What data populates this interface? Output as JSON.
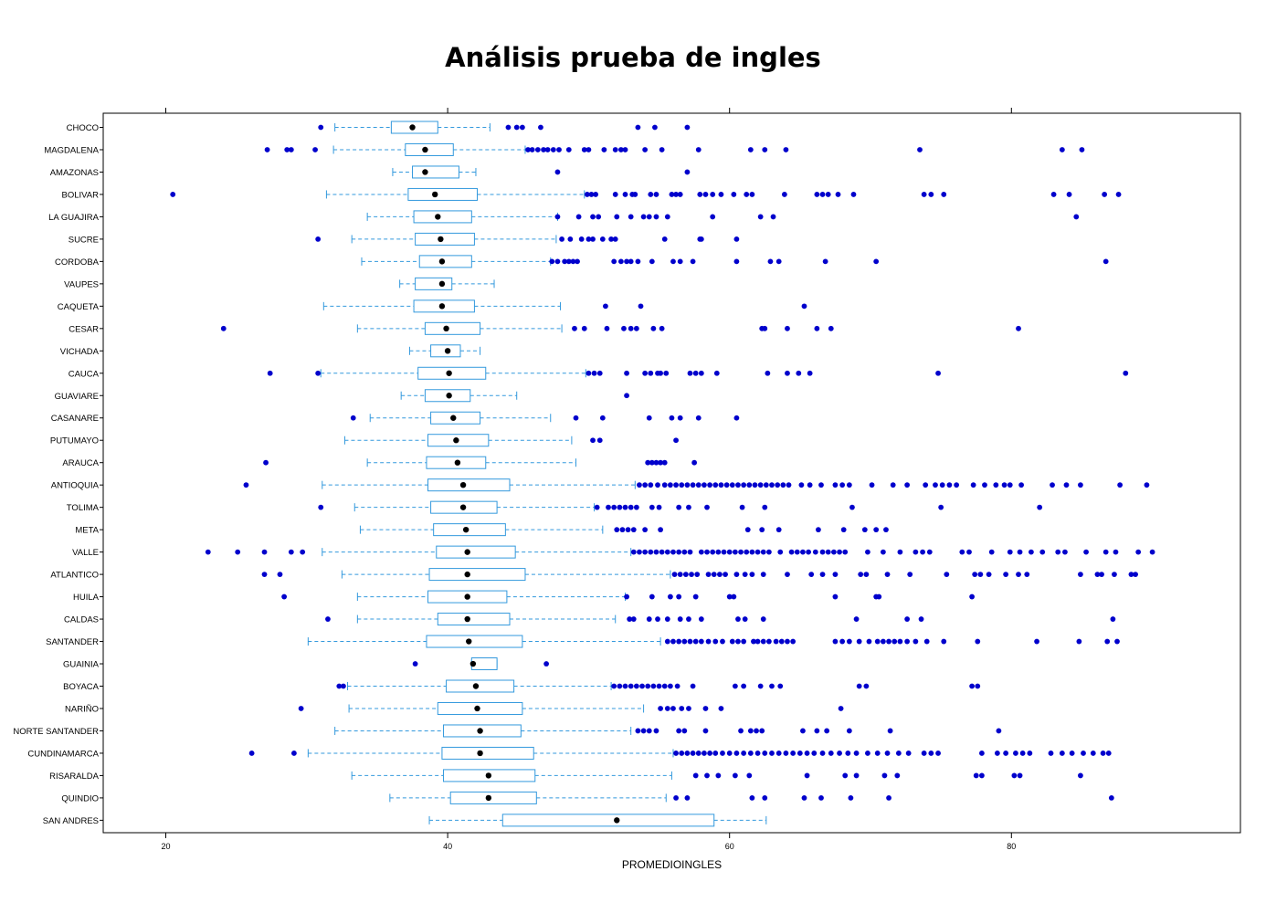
{
  "chart_data": {
    "type": "boxplot",
    "title": "Análisis prueba de ingles",
    "xlabel": "PROMEDIOINGLES",
    "xlim": [
      15.0,
      95.9
    ],
    "xticks": [
      20,
      40,
      60,
      80
    ],
    "colors": {
      "box": "#3399dd",
      "median": "#000000",
      "outlier": "#0000cc",
      "frame": "#000000"
    },
    "categories": [
      "CHOCO",
      "MAGDALENA",
      "AMAZONAS",
      "BOLIVAR",
      "LA GUAJIRA",
      "SUCRE",
      "CORDOBA",
      "VAUPES",
      "CAQUETA",
      "CESAR",
      "VICHADA",
      "CAUCA",
      "GUAVIARE",
      "CASANARE",
      "PUTUMAYO",
      "ARAUCA",
      "ANTIOQUIA",
      "TOLIMA",
      "META",
      "VALLE",
      "ATLANTICO",
      "HUILA",
      "CALDAS",
      "SANTANDER",
      "GUAINIA",
      "BOYACA",
      "NARIÑO",
      "NORTE SANTANDER",
      "CUNDINAMARCA",
      "RISARALDA",
      "QUINDIO",
      "SAN ANDRES"
    ],
    "series": [
      {
        "whisker_low": 32.0,
        "q1": 36.0,
        "median": 37.5,
        "q3": 39.3,
        "whisker_high": 43.0,
        "outliers": [
          31.0,
          44.3,
          44.9,
          45.3,
          46.6,
          53.5,
          54.7,
          57.0
        ]
      },
      {
        "whisker_low": 31.9,
        "q1": 37.0,
        "median": 38.4,
        "q3": 40.4,
        "whisker_high": 45.5,
        "outliers": [
          27.2,
          28.6,
          28.9,
          30.6,
          45.7,
          46.0,
          46.4,
          46.8,
          47.1,
          47.5,
          47.9,
          48.6,
          49.7,
          50.0,
          51.1,
          51.9,
          52.3,
          52.6,
          54.0,
          55.2,
          57.8,
          61.5,
          62.5,
          64.0,
          73.5,
          83.6,
          85.0
        ]
      },
      {
        "whisker_low": 36.1,
        "q1": 37.5,
        "median": 38.4,
        "q3": 40.8,
        "whisker_high": 42.0,
        "outliers": [
          47.8,
          57.0
        ]
      },
      {
        "whisker_low": 31.4,
        "q1": 37.2,
        "median": 39.1,
        "q3": 42.1,
        "whisker_high": 49.7,
        "outliers": [
          20.5,
          49.9,
          50.2,
          50.5,
          51.9,
          52.6,
          53.1,
          53.3,
          54.4,
          54.8,
          55.9,
          56.2,
          56.5,
          57.9,
          58.3,
          58.8,
          59.4,
          60.3,
          61.2,
          61.6,
          63.9,
          66.2,
          66.6,
          67.0,
          67.7,
          68.8,
          73.8,
          74.3,
          75.2,
          83.0,
          84.1,
          86.6,
          87.6
        ]
      },
      {
        "whisker_low": 34.3,
        "q1": 37.6,
        "median": 39.3,
        "q3": 41.7,
        "whisker_high": 47.8,
        "outliers": [
          47.8,
          49.3,
          50.3,
          50.7,
          52.0,
          53.0,
          53.9,
          54.3,
          54.8,
          55.6,
          58.8,
          62.2,
          63.1,
          84.6
        ]
      },
      {
        "whisker_low": 33.2,
        "q1": 37.7,
        "median": 39.5,
        "q3": 41.9,
        "whisker_high": 47.7,
        "outliers": [
          30.8,
          48.1,
          48.7,
          49.5,
          50.0,
          50.3,
          51.0,
          51.6,
          51.9,
          55.4,
          57.9,
          58.0,
          60.5
        ]
      },
      {
        "whisker_low": 33.9,
        "q1": 38.0,
        "median": 39.6,
        "q3": 41.7,
        "whisker_high": 47.3,
        "outliers": [
          47.4,
          47.8,
          48.3,
          48.6,
          48.9,
          49.2,
          51.8,
          52.3,
          52.7,
          53.0,
          53.5,
          54.5,
          56.0,
          56.5,
          57.4,
          60.5,
          62.9,
          63.5,
          66.8,
          70.4,
          86.7
        ]
      },
      {
        "whisker_low": 36.6,
        "q1": 37.7,
        "median": 39.6,
        "q3": 40.3,
        "whisker_high": 43.3,
        "outliers": []
      },
      {
        "whisker_low": 31.2,
        "q1": 37.6,
        "median": 39.6,
        "q3": 41.9,
        "whisker_high": 48.0,
        "outliers": [
          51.2,
          53.7,
          65.3
        ]
      },
      {
        "whisker_low": 33.6,
        "q1": 38.4,
        "median": 39.9,
        "q3": 42.3,
        "whisker_high": 48.1,
        "outliers": [
          24.1,
          49.0,
          49.7,
          51.3,
          52.5,
          53.0,
          53.4,
          54.6,
          55.2,
          62.3,
          62.5,
          64.1,
          66.2,
          67.2,
          80.5
        ]
      },
      {
        "whisker_low": 37.3,
        "q1": 38.8,
        "median": 40.0,
        "q3": 40.9,
        "whisker_high": 42.3,
        "outliers": []
      },
      {
        "whisker_low": 31.0,
        "q1": 37.9,
        "median": 40.1,
        "q3": 42.7,
        "whisker_high": 49.8,
        "outliers": [
          27.4,
          30.8,
          50.0,
          50.4,
          50.8,
          52.7,
          54.0,
          54.4,
          54.9,
          55.1,
          55.5,
          57.2,
          57.6,
          58.0,
          59.1,
          62.7,
          64.1,
          64.9,
          65.7,
          74.8,
          88.1
        ]
      },
      {
        "whisker_low": 36.7,
        "q1": 38.4,
        "median": 40.1,
        "q3": 41.6,
        "whisker_high": 44.9,
        "outliers": [
          52.7
        ]
      },
      {
        "whisker_low": 34.5,
        "q1": 38.8,
        "median": 40.4,
        "q3": 42.3,
        "whisker_high": 47.3,
        "outliers": [
          33.3,
          49.1,
          51.0,
          54.3,
          55.9,
          56.5,
          57.8,
          60.5
        ]
      },
      {
        "whisker_low": 32.7,
        "q1": 38.6,
        "median": 40.6,
        "q3": 42.9,
        "whisker_high": 48.8,
        "outliers": [
          50.3,
          50.8,
          56.2
        ]
      },
      {
        "whisker_low": 34.3,
        "q1": 38.5,
        "median": 40.7,
        "q3": 42.7,
        "whisker_high": 49.1,
        "outliers": [
          27.1,
          54.2,
          54.5,
          54.8,
          55.1,
          55.4,
          57.5
        ]
      },
      {
        "whisker_low": 31.1,
        "q1": 38.6,
        "median": 41.1,
        "q3": 44.4,
        "whisker_high": 53.3,
        "outliers": [
          25.7,
          53.6,
          54.0,
          54.4,
          54.9,
          55.4,
          55.8,
          56.2,
          56.6,
          57.0,
          57.4,
          57.8,
          58.2,
          58.6,
          59.0,
          59.4,
          59.8,
          60.2,
          60.6,
          61.0,
          61.4,
          61.8,
          62.2,
          62.6,
          63.0,
          63.4,
          63.8,
          64.2,
          65.1,
          65.7,
          66.5,
          67.5,
          68.0,
          68.5,
          70.1,
          71.6,
          72.6,
          73.9,
          74.6,
          75.1,
          75.6,
          76.1,
          77.3,
          78.1,
          78.9,
          79.5,
          79.9,
          80.7,
          82.9,
          83.9,
          84.9,
          87.7,
          89.6
        ]
      },
      {
        "whisker_low": 33.4,
        "q1": 38.8,
        "median": 41.1,
        "q3": 43.5,
        "whisker_high": 50.4,
        "outliers": [
          31.0,
          50.6,
          51.4,
          51.8,
          52.2,
          52.6,
          53.0,
          53.4,
          54.5,
          55.0,
          56.4,
          57.1,
          58.4,
          60.9,
          62.5,
          68.7,
          75.0,
          82.0
        ]
      },
      {
        "whisker_low": 33.8,
        "q1": 39.0,
        "median": 41.3,
        "q3": 44.1,
        "whisker_high": 51.0,
        "outliers": [
          52.0,
          52.4,
          52.8,
          53.2,
          54.0,
          55.1,
          61.3,
          62.3,
          63.5,
          66.3,
          68.1,
          69.6,
          70.4,
          71.1
        ]
      },
      {
        "whisker_low": 31.1,
        "q1": 39.2,
        "median": 41.4,
        "q3": 44.8,
        "whisker_high": 53.0,
        "outliers": [
          23.0,
          25.1,
          27.0,
          28.9,
          29.7,
          53.2,
          53.6,
          54.0,
          54.4,
          54.8,
          55.2,
          55.6,
          56.0,
          56.4,
          56.8,
          57.2,
          58.0,
          58.4,
          58.8,
          59.2,
          59.6,
          60.0,
          60.4,
          60.8,
          61.2,
          61.6,
          62.0,
          62.4,
          62.8,
          63.6,
          64.4,
          64.8,
          65.2,
          65.6,
          66.1,
          66.6,
          67.0,
          67.4,
          67.8,
          68.2,
          69.8,
          70.9,
          72.1,
          73.2,
          73.7,
          74.2,
          76.5,
          77.0,
          78.6,
          79.9,
          80.6,
          81.4,
          82.2,
          83.3,
          83.8,
          85.3,
          86.7,
          87.4,
          89.0,
          90.0
        ]
      },
      {
        "whisker_low": 32.5,
        "q1": 38.7,
        "median": 41.4,
        "q3": 45.5,
        "whisker_high": 55.8,
        "outliers": [
          27.0,
          28.1,
          56.1,
          56.5,
          56.9,
          57.3,
          57.7,
          58.5,
          58.9,
          59.3,
          59.7,
          60.5,
          61.1,
          61.6,
          62.4,
          64.1,
          65.8,
          66.6,
          67.5,
          69.3,
          69.7,
          71.2,
          72.8,
          75.4,
          77.4,
          77.8,
          78.4,
          79.6,
          80.5,
          81.1,
          84.9,
          86.1,
          86.4,
          87.3,
          88.5,
          88.8
        ]
      },
      {
        "whisker_low": 33.6,
        "q1": 38.6,
        "median": 41.4,
        "q3": 44.2,
        "whisker_high": 52.6,
        "outliers": [
          28.4,
          52.7,
          54.5,
          55.8,
          56.4,
          57.6,
          60.0,
          60.3,
          67.5,
          70.4,
          70.6,
          77.2
        ]
      },
      {
        "whisker_low": 33.6,
        "q1": 39.3,
        "median": 41.4,
        "q3": 44.4,
        "whisker_high": 51.9,
        "outliers": [
          31.5,
          52.9,
          53.2,
          54.3,
          54.9,
          55.6,
          56.5,
          57.1,
          58.0,
          60.6,
          61.1,
          62.4,
          69.0,
          72.6,
          73.6,
          87.2
        ]
      },
      {
        "whisker_low": 30.1,
        "q1": 38.5,
        "median": 41.5,
        "q3": 45.3,
        "whisker_high": 55.1,
        "outliers": [
          55.6,
          56.0,
          56.4,
          56.8,
          57.2,
          57.6,
          58.0,
          58.5,
          59.0,
          59.5,
          60.2,
          60.6,
          61.0,
          61.7,
          62.0,
          62.4,
          62.8,
          63.3,
          63.7,
          64.1,
          64.5,
          67.5,
          68.0,
          68.5,
          69.2,
          69.9,
          70.5,
          70.9,
          71.3,
          71.7,
          72.1,
          72.6,
          73.2,
          74.0,
          75.2,
          77.6,
          81.8,
          84.8,
          86.8,
          87.5
        ]
      },
      {
        "whisker_low": 41.7,
        "q1": 41.7,
        "median": 41.8,
        "q3": 43.5,
        "whisker_high": 43.5,
        "outliers": [
          37.7,
          47.0
        ]
      },
      {
        "whisker_low": 32.9,
        "q1": 39.9,
        "median": 42.0,
        "q3": 44.7,
        "whisker_high": 51.6,
        "outliers": [
          32.3,
          32.6,
          51.8,
          52.2,
          52.6,
          53.0,
          53.4,
          53.8,
          54.2,
          54.6,
          55.0,
          55.4,
          55.8,
          56.3,
          57.4,
          60.4,
          61.0,
          62.2,
          63.0,
          63.6,
          69.2,
          69.7,
          77.2,
          77.6
        ]
      },
      {
        "whisker_low": 33.0,
        "q1": 39.3,
        "median": 42.1,
        "q3": 45.3,
        "whisker_high": 53.9,
        "outliers": [
          29.6,
          55.1,
          55.6,
          56.0,
          56.6,
          57.1,
          58.3,
          59.4,
          67.9
        ]
      },
      {
        "whisker_low": 32.0,
        "q1": 39.7,
        "median": 42.3,
        "q3": 45.2,
        "whisker_high": 53.0,
        "outliers": [
          53.5,
          53.9,
          54.3,
          54.8,
          56.4,
          56.8,
          58.3,
          60.8,
          61.5,
          61.9,
          62.3,
          65.2,
          66.2,
          66.9,
          68.5,
          71.4,
          79.1
        ]
      },
      {
        "whisker_low": 30.1,
        "q1": 39.6,
        "median": 42.3,
        "q3": 46.1,
        "whisker_high": 56.0,
        "outliers": [
          26.1,
          29.1,
          56.2,
          56.6,
          57.0,
          57.4,
          57.8,
          58.2,
          58.6,
          59.0,
          59.5,
          60.0,
          60.5,
          61.0,
          61.5,
          62.0,
          62.5,
          63.0,
          63.5,
          64.0,
          64.5,
          65.0,
          65.5,
          66.0,
          66.6,
          67.2,
          67.8,
          68.4,
          69.0,
          69.8,
          70.5,
          71.2,
          72.0,
          72.7,
          73.8,
          74.3,
          74.8,
          77.9,
          79.0,
          79.6,
          80.3,
          80.8,
          81.3,
          82.8,
          83.6,
          84.3,
          85.1,
          85.8,
          86.5,
          86.9
        ]
      },
      {
        "whisker_low": 33.2,
        "q1": 39.7,
        "median": 42.9,
        "q3": 46.2,
        "whisker_high": 55.9,
        "outliers": [
          57.6,
          58.4,
          59.2,
          60.4,
          61.4,
          65.5,
          68.2,
          69.0,
          71.0,
          71.9,
          77.5,
          77.9,
          80.2,
          80.6,
          84.9
        ]
      },
      {
        "whisker_low": 35.9,
        "q1": 40.2,
        "median": 42.9,
        "q3": 46.3,
        "whisker_high": 55.5,
        "outliers": [
          56.2,
          57.0,
          61.6,
          62.5,
          65.3,
          66.5,
          68.6,
          71.3,
          87.1
        ]
      },
      {
        "whisker_low": 38.7,
        "q1": 43.9,
        "median": 52.0,
        "q3": 58.9,
        "whisker_high": 62.6,
        "outliers": []
      }
    ]
  }
}
